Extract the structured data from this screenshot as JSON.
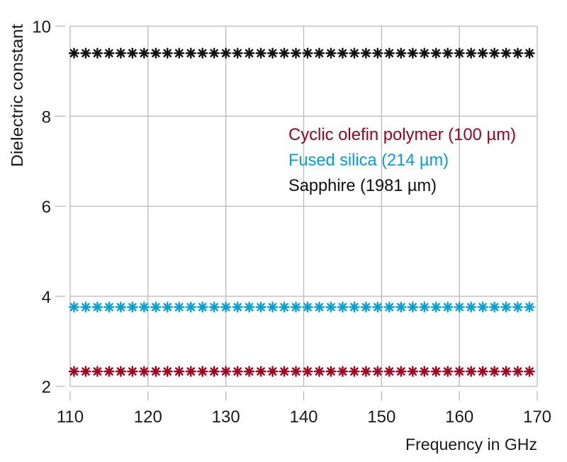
{
  "chart_data": {
    "type": "scatter",
    "title": "",
    "xlabel": "Frequency in GHz",
    "ylabel": "Dielectric constant",
    "xlim": [
      110,
      170
    ],
    "ylim": [
      2,
      10
    ],
    "xticks": [
      "110",
      "120",
      "130",
      "140",
      "150",
      "160",
      "170"
    ],
    "yticks": [
      "2",
      "4",
      "6",
      "8",
      "10"
    ],
    "grid": true,
    "legend_placement": "center-right",
    "marker": "asterisk",
    "x": [
      110.5,
      112,
      113.5,
      115,
      116.5,
      118,
      119.5,
      121,
      122.5,
      124,
      125.5,
      127,
      128.5,
      130,
      131.5,
      133,
      134.5,
      136,
      137.5,
      139,
      140.5,
      142,
      143.5,
      145,
      146.5,
      148,
      149.5,
      151,
      152.5,
      154,
      155.5,
      157,
      158.5,
      160,
      161.5,
      163,
      164.5,
      166,
      167.5,
      169
    ],
    "series": [
      {
        "name": "Cyclic olefin polymer (100 µm)",
        "color": "#a8001c",
        "value": 2.33
      },
      {
        "name": "Fused silica (214 µm)",
        "color": "#00a0e0",
        "value": 3.76
      },
      {
        "name": "Sapphire (1981 µm)",
        "color": "#111111",
        "value": 9.4
      }
    ]
  }
}
